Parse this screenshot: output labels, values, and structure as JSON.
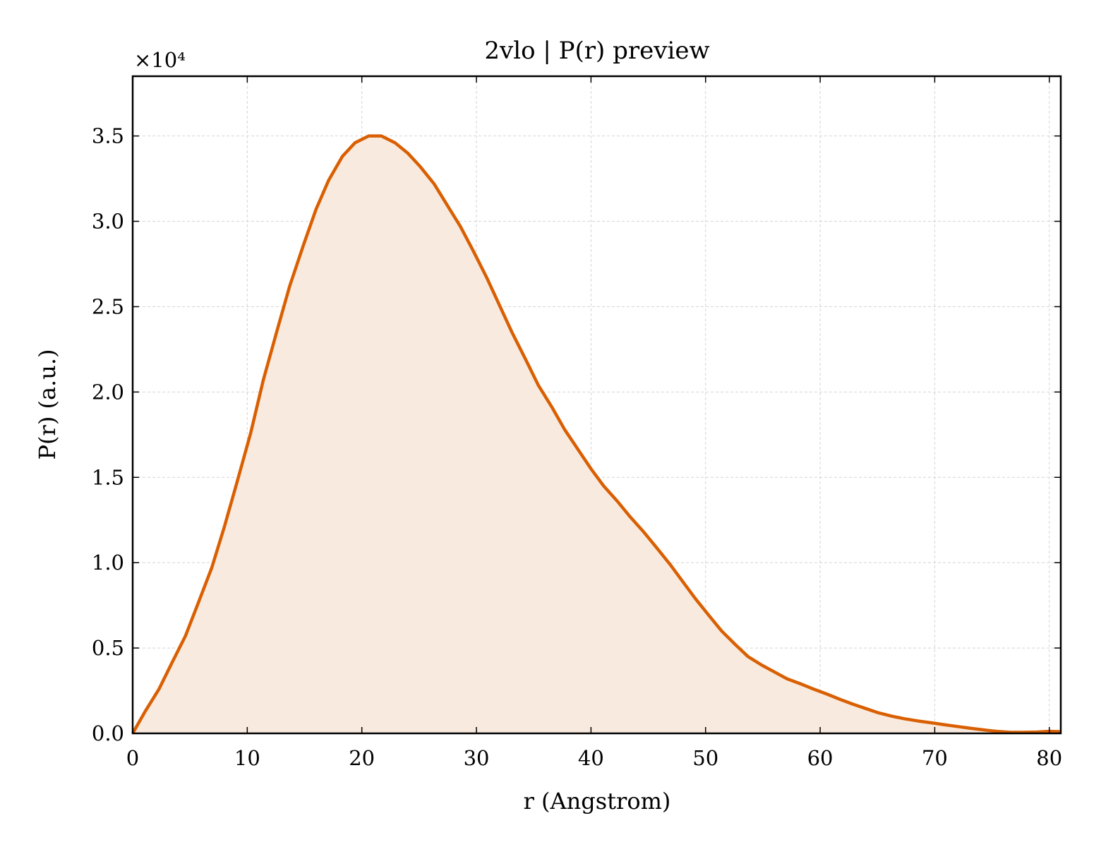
{
  "chart_data": {
    "type": "area",
    "title": "2vlo | P(r) preview",
    "xlabel": "r (Angstrom)",
    "ylabel": "P(r) (a.u.)",
    "y_multiplier_label": "×10⁴",
    "xlim": [
      0,
      81
    ],
    "ylim": [
      0,
      3.85
    ],
    "xticks": [
      0,
      10,
      20,
      30,
      40,
      50,
      60,
      70,
      80
    ],
    "yticks": [
      0.0,
      0.5,
      1.0,
      1.5,
      2.0,
      2.5,
      3.0,
      3.5
    ],
    "grid": true,
    "line_color": "#d95f02",
    "fill_color": "#f9eadf",
    "series": [
      {
        "x": [
          0,
          1.1,
          2.3,
          3.4,
          4.6,
          5.7,
          6.9,
          8.0,
          9.1,
          10.3,
          11.4,
          12.6,
          13.7,
          14.9,
          16.0,
          17.1,
          18.3,
          19.4,
          20.6,
          21.7,
          22.9,
          24.0,
          25.1,
          26.3,
          27.4,
          28.6,
          29.7,
          30.9,
          32.0,
          33.1,
          34.3,
          35.4,
          36.6,
          37.7,
          38.9,
          40.0,
          41.1,
          42.3,
          43.4,
          44.6,
          45.7,
          46.9,
          48.0,
          49.1,
          50.3,
          51.4,
          52.6,
          53.7,
          54.9,
          56.0,
          57.1,
          58.3,
          59.4,
          60.6,
          61.7,
          62.9,
          64.0,
          65.1,
          66.3,
          67.4,
          68.6,
          69.7,
          70.9,
          72.0,
          73.1,
          74.3,
          75.4,
          76.6,
          77.7,
          78.9,
          80.0,
          81.0
        ],
        "y": [
          0.0,
          0.13,
          0.26,
          0.41,
          0.57,
          0.76,
          0.97,
          1.21,
          1.47,
          1.76,
          2.07,
          2.36,
          2.62,
          2.86,
          3.07,
          3.24,
          3.38,
          3.46,
          3.5,
          3.5,
          3.46,
          3.4,
          3.32,
          3.22,
          3.1,
          2.97,
          2.83,
          2.67,
          2.51,
          2.35,
          2.19,
          2.04,
          1.91,
          1.78,
          1.66,
          1.55,
          1.45,
          1.36,
          1.27,
          1.18,
          1.09,
          0.99,
          0.89,
          0.79,
          0.69,
          0.6,
          0.52,
          0.45,
          0.4,
          0.36,
          0.32,
          0.29,
          0.26,
          0.23,
          0.2,
          0.17,
          0.145,
          0.12,
          0.1,
          0.085,
          0.072,
          0.062,
          0.05,
          0.04,
          0.03,
          0.02,
          0.012,
          0.006,
          0.006,
          0.008,
          0.012,
          0.01
        ]
      }
    ]
  }
}
